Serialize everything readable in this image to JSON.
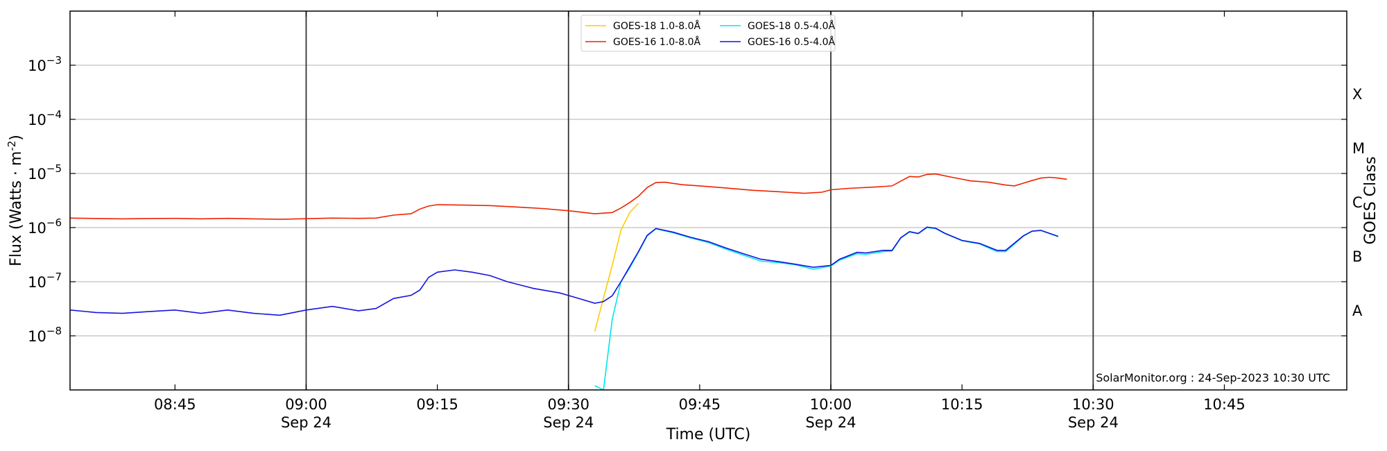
{
  "chart_data": {
    "type": "line",
    "title": "",
    "xlabel": "Time (UTC)",
    "ylabel": "Flux (Watts · m",
    "ylabel_sup": "-2",
    "ylabel_close": ")",
    "y2label": "GOES Class",
    "y_scale": "log",
    "xlim": [
      "08:33",
      "10:59"
    ],
    "ylim": [
      1e-09,
      0.01
    ],
    "grid": "horizontal",
    "legend_position": "top-center",
    "credit": "SolarMonitor.org : 24-Sep-2023 10:30 UTC",
    "x_ticks": [
      {
        "time": "08:45",
        "label": "08:45",
        "date": ""
      },
      {
        "time": "09:00",
        "label": "09:00",
        "date": "Sep 24"
      },
      {
        "time": "09:15",
        "label": "09:15",
        "date": ""
      },
      {
        "time": "09:30",
        "label": "09:30",
        "date": "Sep 24"
      },
      {
        "time": "09:45",
        "label": "09:45",
        "date": ""
      },
      {
        "time": "10:00",
        "label": "10:00",
        "date": "Sep 24"
      },
      {
        "time": "10:15",
        "label": "10:15",
        "date": ""
      },
      {
        "time": "10:30",
        "label": "10:30",
        "date": "Sep 24"
      },
      {
        "time": "10:45",
        "label": "10:45",
        "date": ""
      }
    ],
    "vertical_lines": [
      "09:00",
      "09:30",
      "10:00",
      "10:30"
    ],
    "y_ticks": [
      {
        "exp": -8,
        "base": "10",
        "sup": "−8"
      },
      {
        "exp": -7,
        "base": "10",
        "sup": "−7"
      },
      {
        "exp": -6,
        "base": "10",
        "sup": "−6"
      },
      {
        "exp": -5,
        "base": "10",
        "sup": "−5"
      },
      {
        "exp": -4,
        "base": "10",
        "sup": "−4"
      },
      {
        "exp": -3,
        "base": "10",
        "sup": "−3"
      }
    ],
    "goes_classes": [
      {
        "label": "A",
        "flux": 3e-08
      },
      {
        "label": "B",
        "flux": 3e-07
      },
      {
        "label": "C",
        "flux": 3e-06
      },
      {
        "label": "M",
        "flux": 3e-05
      },
      {
        "label": "X",
        "flux": 0.0003
      }
    ],
    "series": [
      {
        "name": "GOES-18 1.0-8.0Å",
        "color": "#ffcc00",
        "points": [
          [
            "09:33",
            1.2e-08
          ],
          [
            "09:34",
            5e-08
          ],
          [
            "09:35",
            2e-07
          ],
          [
            "09:36",
            9e-07
          ],
          [
            "09:37",
            1.9e-06
          ],
          [
            "09:38",
            2.8e-06
          ]
        ]
      },
      {
        "name": "GOES-16 1.0-8.0Å",
        "color": "#ee2200",
        "points": [
          [
            "08:33",
            1.5e-06
          ],
          [
            "08:36",
            1.47e-06
          ],
          [
            "08:39",
            1.45e-06
          ],
          [
            "08:42",
            1.47e-06
          ],
          [
            "08:45",
            1.48e-06
          ],
          [
            "08:48",
            1.45e-06
          ],
          [
            "08:51",
            1.48e-06
          ],
          [
            "08:54",
            1.45e-06
          ],
          [
            "08:57",
            1.42e-06
          ],
          [
            "09:00",
            1.46e-06
          ],
          [
            "09:03",
            1.5e-06
          ],
          [
            "09:06",
            1.48e-06
          ],
          [
            "09:08",
            1.5e-06
          ],
          [
            "09:10",
            1.7e-06
          ],
          [
            "09:12",
            1.8e-06
          ],
          [
            "09:13",
            2.2e-06
          ],
          [
            "09:14",
            2.5e-06
          ],
          [
            "09:15",
            2.65e-06
          ],
          [
            "09:18",
            2.6e-06
          ],
          [
            "09:21",
            2.55e-06
          ],
          [
            "09:24",
            2.4e-06
          ],
          [
            "09:27",
            2.25e-06
          ],
          [
            "09:30",
            2.05e-06
          ],
          [
            "09:33",
            1.8e-06
          ],
          [
            "09:35",
            1.9e-06
          ],
          [
            "09:36",
            2.3e-06
          ],
          [
            "09:37",
            2.9e-06
          ],
          [
            "09:38",
            3.8e-06
          ],
          [
            "09:39",
            5.5e-06
          ],
          [
            "09:40",
            6.8e-06
          ],
          [
            "09:41",
            6.9e-06
          ],
          [
            "09:43",
            6.2e-06
          ],
          [
            "09:45",
            5.9e-06
          ],
          [
            "09:48",
            5.4e-06
          ],
          [
            "09:51",
            4.9e-06
          ],
          [
            "09:54",
            4.6e-06
          ],
          [
            "09:57",
            4.3e-06
          ],
          [
            "09:59",
            4.5e-06
          ],
          [
            "10:00",
            5e-06
          ],
          [
            "10:02",
            5.3e-06
          ],
          [
            "10:05",
            5.6e-06
          ],
          [
            "10:07",
            5.9e-06
          ],
          [
            "10:08",
            7.2e-06
          ],
          [
            "10:09",
            8.8e-06
          ],
          [
            "10:10",
            8.6e-06
          ],
          [
            "10:11",
            9.6e-06
          ],
          [
            "10:12",
            9.8e-06
          ],
          [
            "10:14",
            8.4e-06
          ],
          [
            "10:16",
            7.3e-06
          ],
          [
            "10:18",
            6.9e-06
          ],
          [
            "10:20",
            6.1e-06
          ],
          [
            "10:21",
            5.9e-06
          ],
          [
            "10:22",
            6.6e-06
          ],
          [
            "10:23",
            7.4e-06
          ],
          [
            "10:24",
            8.2e-06
          ],
          [
            "10:25",
            8.5e-06
          ],
          [
            "10:26",
            8.2e-06
          ],
          [
            "10:27",
            7.8e-06
          ]
        ]
      },
      {
        "name": "GOES-18 0.5-4.0Å",
        "color": "#00e5ee",
        "points": [
          [
            "09:33",
            1.2e-09
          ],
          [
            "09:34",
            1e-09
          ],
          [
            "09:35",
            2e-08
          ],
          [
            "09:36",
            1e-07
          ],
          [
            "09:37",
            1.8e-07
          ],
          [
            "09:38",
            3.5e-07
          ],
          [
            "09:39",
            7e-07
          ],
          [
            "09:40",
            9.5e-07
          ],
          [
            "09:42",
            8e-07
          ],
          [
            "09:44",
            6.4e-07
          ],
          [
            "09:46",
            5.3e-07
          ],
          [
            "09:48",
            4e-07
          ],
          [
            "09:50",
            3.1e-07
          ],
          [
            "09:52",
            2.4e-07
          ],
          [
            "09:54",
            2.25e-07
          ],
          [
            "09:56",
            2.05e-07
          ],
          [
            "09:58",
            1.7e-07
          ],
          [
            "10:00",
            1.95e-07
          ],
          [
            "10:01",
            2.5e-07
          ],
          [
            "10:03",
            3.3e-07
          ],
          [
            "10:04",
            3.2e-07
          ],
          [
            "10:06",
            3.6e-07
          ],
          [
            "10:07",
            3.7e-07
          ],
          [
            "10:08",
            6.4e-07
          ],
          [
            "10:09",
            8.3e-07
          ],
          [
            "10:10",
            7.7e-07
          ],
          [
            "10:11",
            1e-06
          ],
          [
            "10:12",
            9.6e-07
          ],
          [
            "10:13",
            7.8e-07
          ],
          [
            "10:15",
            5.7e-07
          ],
          [
            "10:17",
            5e-07
          ],
          [
            "10:19",
            3.6e-07
          ],
          [
            "10:20",
            3.6e-07
          ],
          [
            "10:22",
            6.9e-07
          ],
          [
            "10:23",
            8.5e-07
          ],
          [
            "10:24",
            8.8e-07
          ],
          [
            "10:26",
            6.8e-07
          ]
        ]
      },
      {
        "name": "GOES-16 0.5-4.0Å",
        "color": "#1414dd",
        "points": [
          [
            "08:33",
            3e-08
          ],
          [
            "08:36",
            2.7e-08
          ],
          [
            "08:39",
            2.6e-08
          ],
          [
            "08:42",
            2.8e-08
          ],
          [
            "08:45",
            3e-08
          ],
          [
            "08:48",
            2.6e-08
          ],
          [
            "08:51",
            3e-08
          ],
          [
            "08:54",
            2.6e-08
          ],
          [
            "08:57",
            2.4e-08
          ],
          [
            "09:00",
            3e-08
          ],
          [
            "09:03",
            3.5e-08
          ],
          [
            "09:06",
            2.9e-08
          ],
          [
            "09:08",
            3.2e-08
          ],
          [
            "09:10",
            4.9e-08
          ],
          [
            "09:12",
            5.6e-08
          ],
          [
            "09:13",
            7e-08
          ],
          [
            "09:14",
            1.2e-07
          ],
          [
            "09:15",
            1.5e-07
          ],
          [
            "09:17",
            1.65e-07
          ],
          [
            "09:19",
            1.5e-07
          ],
          [
            "09:21",
            1.3e-07
          ],
          [
            "09:23",
            1e-07
          ],
          [
            "09:26",
            7.5e-08
          ],
          [
            "09:29",
            6.2e-08
          ],
          [
            "09:31",
            5e-08
          ],
          [
            "09:33",
            4e-08
          ],
          [
            "09:34",
            4.3e-08
          ],
          [
            "09:35",
            5.5e-08
          ],
          [
            "09:36",
            1e-07
          ],
          [
            "09:37",
            1.9e-07
          ],
          [
            "09:38",
            3.6e-07
          ],
          [
            "09:39",
            7.2e-07
          ],
          [
            "09:40",
            9.6e-07
          ],
          [
            "09:42",
            8.2e-07
          ],
          [
            "09:44",
            6.6e-07
          ],
          [
            "09:46",
            5.5e-07
          ],
          [
            "09:48",
            4.2e-07
          ],
          [
            "09:50",
            3.3e-07
          ],
          [
            "09:52",
            2.6e-07
          ],
          [
            "09:54",
            2.35e-07
          ],
          [
            "09:56",
            2.1e-07
          ],
          [
            "09:58",
            1.85e-07
          ],
          [
            "10:00",
            2e-07
          ],
          [
            "10:01",
            2.6e-07
          ],
          [
            "10:03",
            3.5e-07
          ],
          [
            "10:04",
            3.4e-07
          ],
          [
            "10:06",
            3.8e-07
          ],
          [
            "10:07",
            3.8e-07
          ],
          [
            "10:08",
            6.5e-07
          ],
          [
            "10:09",
            8.4e-07
          ],
          [
            "10:10",
            7.8e-07
          ],
          [
            "10:11",
            1.02e-06
          ],
          [
            "10:12",
            9.7e-07
          ],
          [
            "10:13",
            7.9e-07
          ],
          [
            "10:15",
            5.8e-07
          ],
          [
            "10:17",
            5.1e-07
          ],
          [
            "10:19",
            3.8e-07
          ],
          [
            "10:20",
            3.8e-07
          ],
          [
            "10:22",
            7e-07
          ],
          [
            "10:23",
            8.6e-07
          ],
          [
            "10:24",
            8.9e-07
          ],
          [
            "10:26",
            6.9e-07
          ]
        ]
      }
    ]
  }
}
